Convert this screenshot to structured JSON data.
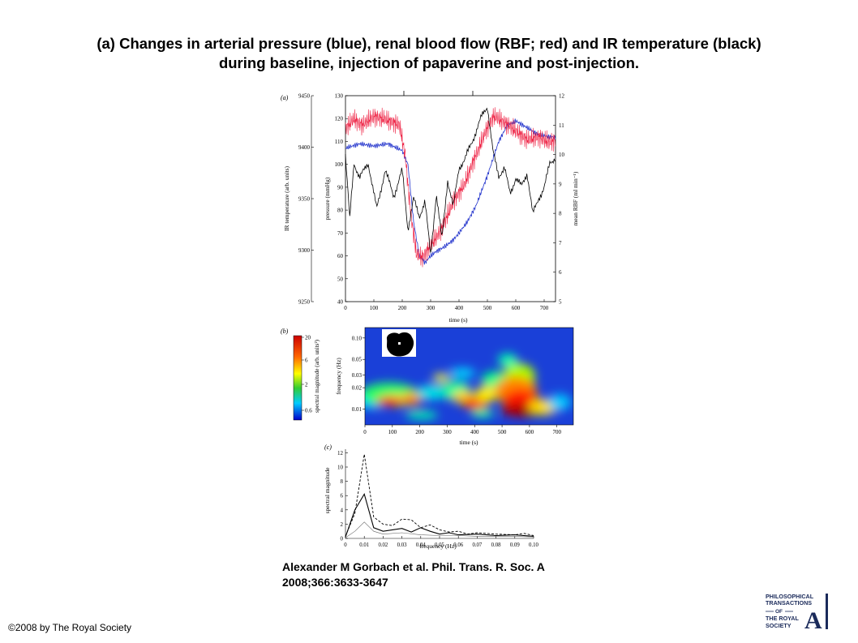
{
  "title_line1": "(a) Changes in arterial pressure (blue), renal blood flow (RBF; red) and IR temperature (black)",
  "title_line2": "during baseline, injection of papaverine and post-injection.",
  "citation_line1": "Alexander M Gorbach et al. Phil. Trans. R. Soc. A",
  "citation_line2": "2008;366:3633-3647",
  "copyright": "©2008 by The Royal Society",
  "logo": {
    "line1": "PHILOSOPHICAL",
    "line2": "TRANSACTIONS",
    "line3": "OF",
    "line4": "THE ROYAL",
    "line5": "SOCIETY",
    "letter": "A"
  },
  "chart_data": [
    {
      "type": "line",
      "panel_label": "(a)",
      "xlabel": "time (s)",
      "x_ticks": [
        0,
        100,
        200,
        300,
        400,
        500,
        600,
        700
      ],
      "xlim": [
        0,
        740
      ],
      "ylabel_left_outer": "IR temperature (arb. units)",
      "y_outer_ticks": [
        9250,
        9300,
        9350,
        9400,
        9450
      ],
      "ylim_outer": [
        9250,
        9450
      ],
      "ylabel_left_inner": "pressure (mmHg)",
      "y_inner_ticks": [
        40,
        50,
        60,
        70,
        80,
        90,
        100,
        110,
        120,
        130
      ],
      "ylim_inner": [
        40,
        130
      ],
      "ylabel_right": "mean RBF (ml min⁻¹)",
      "y_right_ticks": [
        5,
        6,
        7,
        8,
        9,
        10,
        11,
        12
      ],
      "ylim_right": [
        5,
        12
      ],
      "series": [
        {
          "color": "#2233cc",
          "axis": "pressure",
          "x": [
            0,
            50,
            100,
            150,
            200,
            220,
            240,
            260,
            280,
            300,
            320,
            350,
            380,
            400,
            430,
            460,
            500,
            540,
            570,
            600,
            640,
            680,
            720,
            740
          ],
          "y": [
            107,
            109,
            108,
            109,
            106,
            100,
            75,
            60,
            57,
            60,
            62,
            64,
            67,
            70,
            75,
            82,
            95,
            110,
            117,
            119,
            116,
            113,
            112,
            112
          ]
        },
        {
          "color": "#ee2244",
          "axis": "RBF",
          "x": [
            0,
            30,
            60,
            100,
            140,
            190,
            210,
            230,
            250,
            270,
            300,
            340,
            380,
            420,
            460,
            500,
            520,
            560,
            600,
            640,
            680,
            720,
            740
          ],
          "y": [
            10.9,
            11.2,
            11.0,
            11.3,
            11.2,
            11.0,
            10.0,
            8.0,
            6.6,
            6.5,
            6.9,
            7.5,
            8.4,
            9.0,
            10.0,
            10.9,
            11.3,
            11.1,
            10.8,
            10.5,
            10.6,
            10.4,
            10.5
          ]
        },
        {
          "color": "#000000",
          "axis": "IR temperature",
          "x": [
            0,
            15,
            30,
            50,
            80,
            110,
            140,
            170,
            200,
            220,
            240,
            260,
            280,
            300,
            320,
            340,
            360,
            380,
            400,
            420,
            450,
            480,
            500,
            520,
            540,
            560,
            580,
            600,
            620,
            640,
            660,
            680,
            700,
            720,
            740
          ],
          "y": [
            9392,
            9330,
            9385,
            9370,
            9385,
            9340,
            9378,
            9352,
            9378,
            9320,
            9350,
            9332,
            9348,
            9295,
            9355,
            9310,
            9368,
            9342,
            9380,
            9388,
            9408,
            9430,
            9440,
            9395,
            9372,
            9380,
            9355,
            9370,
            9362,
            9375,
            9335,
            9350,
            9360,
            9385,
            9390
          ]
        }
      ]
    },
    {
      "type": "heatmap",
      "panel_label": "(b)",
      "xlabel": "time (s)",
      "x_ticks": [
        0,
        100,
        200,
        300,
        400,
        500,
        600,
        700
      ],
      "xlim": [
        0,
        760
      ],
      "ylabel": "frequency (Hz)",
      "y_ticks": [
        0.01,
        0.02,
        0.03,
        0.05,
        0.1
      ],
      "colorbar_label": "spectral magnitude (arb. units²)",
      "colorbar_ticks": [
        20,
        6,
        2,
        0.6
      ]
    },
    {
      "type": "line",
      "panel_label": "(c)",
      "xlabel": "frequency (Hz)",
      "x_ticks": [
        0,
        0.01,
        0.02,
        0.03,
        0.04,
        0.05,
        0.06,
        0.07,
        0.08,
        0.09,
        0.1
      ],
      "xlim": [
        0,
        0.1
      ],
      "ylabel": "spectral magnitude",
      "y_ticks": [
        0,
        2,
        4,
        6,
        8,
        10,
        12
      ],
      "ylim": [
        0,
        12.5
      ],
      "series": [
        {
          "style": "dashed",
          "x": [
            0,
            0.005,
            0.01,
            0.015,
            0.02,
            0.025,
            0.03,
            0.035,
            0.04,
            0.045,
            0.05,
            0.055,
            0.06,
            0.065,
            0.07,
            0.08,
            0.09,
            0.095,
            0.1
          ],
          "y": [
            0.3,
            3.5,
            11.8,
            3.0,
            2.0,
            1.8,
            2.7,
            2.6,
            1.5,
            1.9,
            1.2,
            0.9,
            1.0,
            0.6,
            0.8,
            0.6,
            0.5,
            0.7,
            0.4
          ]
        },
        {
          "style": "solid",
          "x": [
            0,
            0.005,
            0.01,
            0.015,
            0.02,
            0.025,
            0.03,
            0.035,
            0.04,
            0.045,
            0.05,
            0.055,
            0.06,
            0.07,
            0.08,
            0.09,
            0.1
          ],
          "y": [
            0.2,
            4.0,
            6.2,
            1.5,
            1.0,
            1.2,
            1.4,
            0.9,
            1.5,
            1.0,
            0.6,
            0.8,
            0.5,
            0.6,
            0.4,
            0.5,
            0.3
          ]
        },
        {
          "style": "thin",
          "x": [
            0,
            0.005,
            0.01,
            0.015,
            0.02,
            0.03,
            0.04,
            0.05,
            0.06,
            0.07,
            0.08,
            0.09,
            0.1
          ],
          "y": [
            0.1,
            1.0,
            2.3,
            1.0,
            0.6,
            0.8,
            0.5,
            0.4,
            0.4,
            0.3,
            0.3,
            0.3,
            0.2
          ]
        }
      ]
    }
  ]
}
